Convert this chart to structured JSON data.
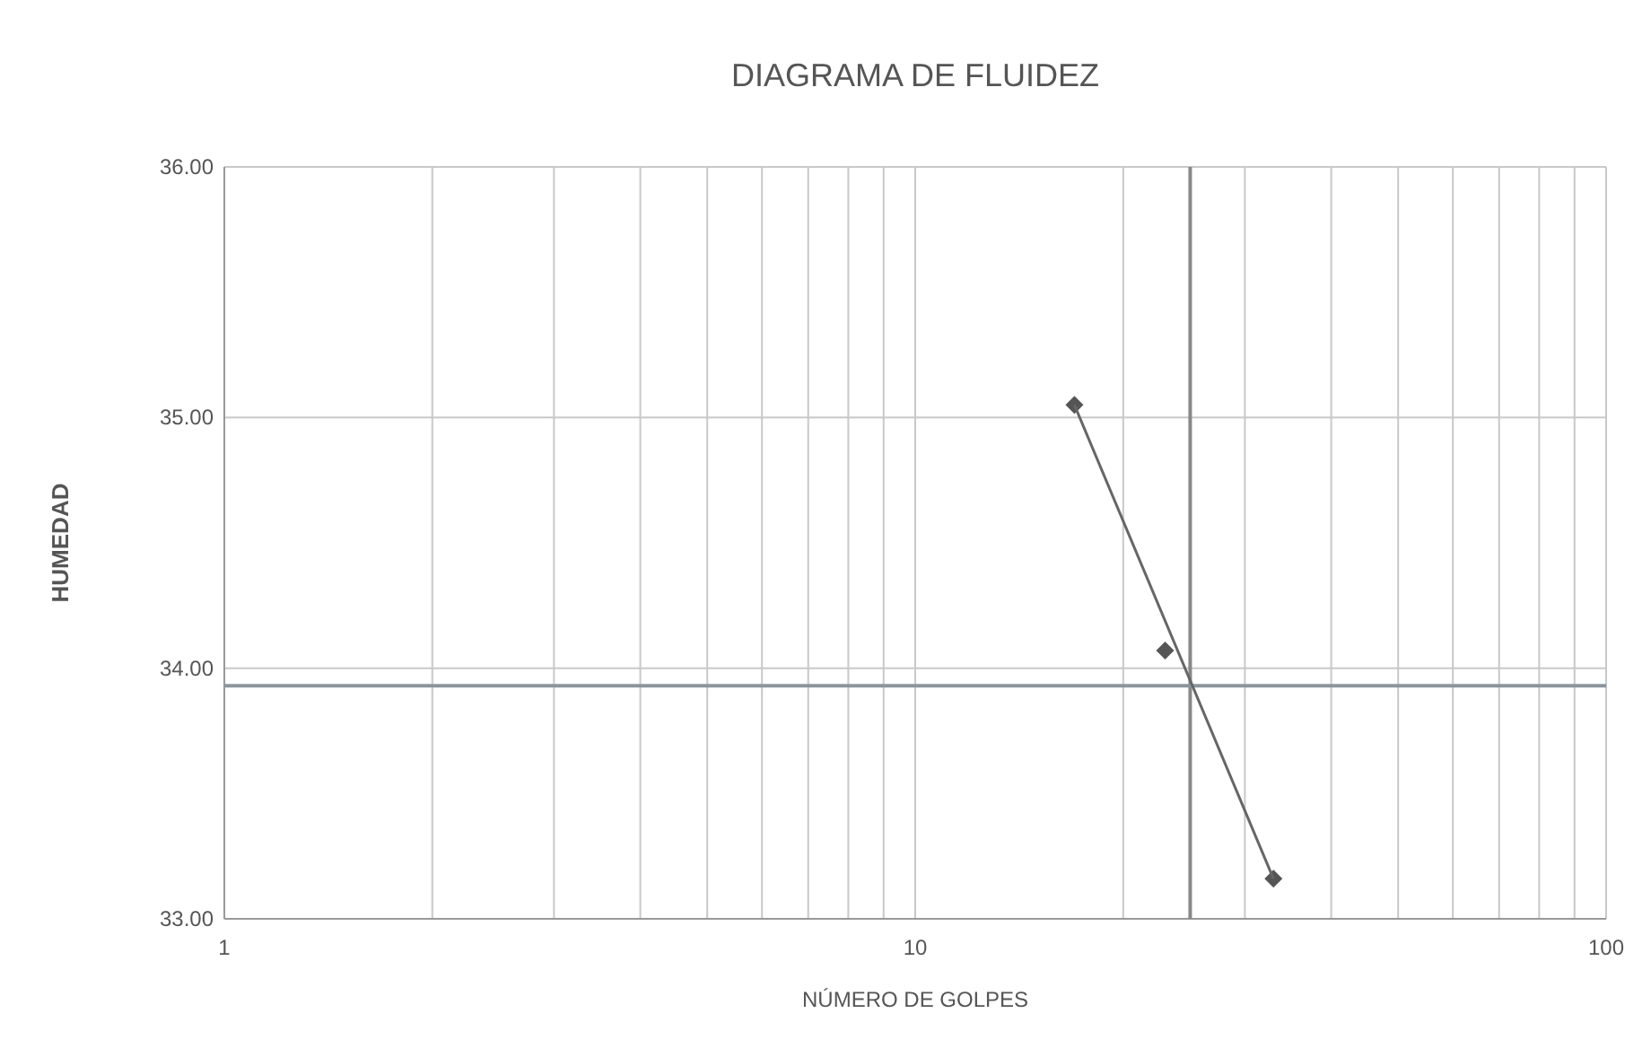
{
  "chart_data": {
    "type": "scatter",
    "title": "DIAGRAMA DE FLUIDEZ",
    "xlabel": "NÚMERO DE GOLPES",
    "ylabel": "HUMEDAD",
    "log": "x",
    "grid": true,
    "marker": "diamond",
    "xlim": [
      1,
      100
    ],
    "ylim": [
      33,
      36
    ],
    "xticks": [
      1,
      {
        "value": 2,
        "label": null
      },
      {
        "value": 3,
        "label": null
      },
      {
        "value": 4,
        "label": null
      },
      {
        "value": 5,
        "label": null
      },
      {
        "value": 6,
        "label": null
      },
      {
        "value": 7,
        "label": null
      },
      {
        "value": 8,
        "label": null
      },
      {
        "value": 9,
        "label": null
      },
      10,
      {
        "value": 20,
        "label": null
      },
      {
        "value": 30,
        "label": null
      },
      {
        "value": 40,
        "label": null
      },
      {
        "value": 50,
        "label": null
      },
      {
        "value": 60,
        "label": null
      },
      {
        "value": 70,
        "label": null
      },
      {
        "value": 80,
        "label": null
      },
      {
        "value": 90,
        "label": null
      },
      100
    ],
    "yticks": [
      {
        "value": 33,
        "label": "33.00"
      },
      {
        "value": 34,
        "label": "34.00"
      },
      {
        "value": 35,
        "label": "35.00"
      },
      {
        "value": 36,
        "label": "36.00"
      }
    ],
    "series": [
      {
        "color": "#555555",
        "x": [
          17,
          23,
          33
        ],
        "values": [
          35.05,
          34.07,
          33.16
        ]
      },
      {
        "type": "line",
        "color": "#666666",
        "marker": "none",
        "x": [
          17,
          33
        ],
        "values": [
          35.05,
          33.16
        ]
      }
    ],
    "ref_lines": [
      {
        "axis": "x",
        "value": 25,
        "color": "#888888"
      },
      {
        "axis": "y",
        "value": 33.93,
        "color": "#8a96a0"
      }
    ]
  }
}
